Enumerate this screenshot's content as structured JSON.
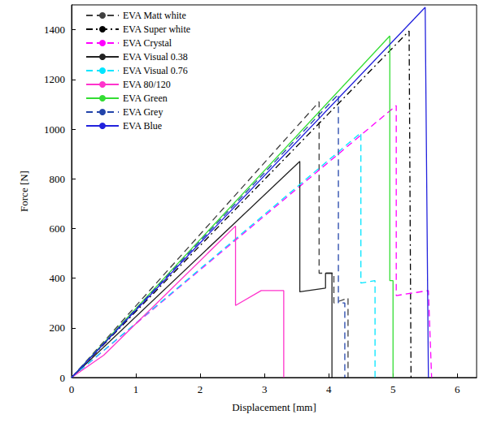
{
  "chart_data": {
    "type": "line",
    "x_label": "Displacement [mm]",
    "y_label": "Force [N]",
    "xlim": [
      0,
      6.3
    ],
    "xticks": [
      0,
      1,
      2,
      3,
      4,
      5,
      6
    ],
    "ylim": [
      0,
      1500
    ],
    "yticks": [
      0,
      200,
      400,
      600,
      800,
      1000,
      1200,
      1400
    ],
    "grid": false,
    "legend": "upper left",
    "series": [
      {
        "name": "EVA Matt white",
        "color": "#404040",
        "line_style": "dashed",
        "x": [
          0,
          3.85,
          3.85,
          4.08,
          4.08,
          4.3,
          4.3
        ],
        "values": [
          0,
          1110,
          420,
          420,
          300,
          320,
          0
        ]
      },
      {
        "name": "EVA Super white",
        "color": "#000000",
        "line_style": "dashdot",
        "x": [
          0,
          5.25,
          5.28
        ],
        "values": [
          0,
          1395,
          0
        ]
      },
      {
        "name": "EVA Crystal",
        "color": "#ff00ff",
        "line_style": "dashed",
        "x": [
          0,
          5.05,
          5.05,
          5.55,
          5.6
        ],
        "values": [
          0,
          1095,
          330,
          350,
          0
        ]
      },
      {
        "name": "EVA Visual 0.38",
        "color": "#222222",
        "line_style": "solid",
        "x": [
          0,
          3.55,
          3.55,
          3.95,
          3.95,
          4.05,
          4.05
        ],
        "values": [
          0,
          870,
          345,
          360,
          420,
          420,
          0
        ]
      },
      {
        "name": "EVA Visual 0.76",
        "color": "#00e5ff",
        "line_style": "dashed",
        "x": [
          0,
          4.5,
          4.5,
          4.72,
          4.72
        ],
        "values": [
          0,
          985,
          380,
          390,
          0
        ]
      },
      {
        "name": "EVA 80/120",
        "color": "#ff33cc",
        "line_style": "solid",
        "x": [
          0,
          0.5,
          2.55,
          2.55,
          2.95,
          3.3,
          3.3
        ],
        "values": [
          0,
          90,
          610,
          290,
          350,
          350,
          0
        ]
      },
      {
        "name": "EVA Green",
        "color": "#33dd33",
        "line_style": "solid",
        "x": [
          0,
          4.95,
          4.95,
          5.0,
          5.0
        ],
        "values": [
          0,
          1375,
          390,
          390,
          0
        ]
      },
      {
        "name": "EVA Grey",
        "color": "#2244aa",
        "line_style": "dashed",
        "x": [
          0,
          4.15,
          4.15,
          4.25,
          4.25
        ],
        "values": [
          0,
          1140,
          300,
          300,
          0
        ]
      },
      {
        "name": "EVA Blue",
        "color": "#2222dd",
        "line_style": "solid",
        "x": [
          0,
          5.5,
          5.55
        ],
        "values": [
          0,
          1490,
          0
        ]
      }
    ]
  }
}
